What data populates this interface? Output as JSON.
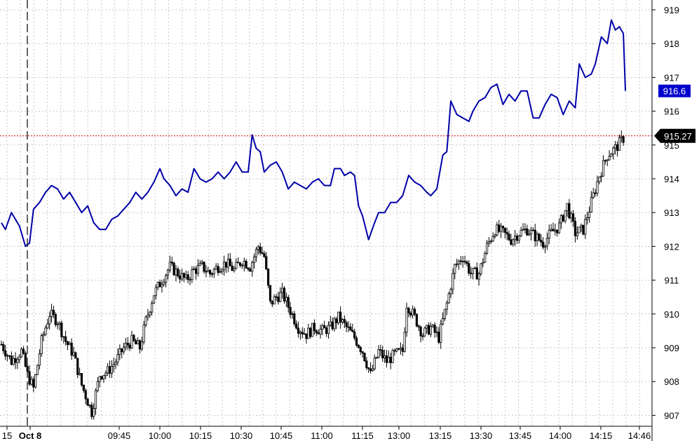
{
  "chart_data": {
    "type": "candlestick+line",
    "y_axis": {
      "range": [
        906.7,
        919.3
      ],
      "ticks": [
        "919",
        "918",
        "917",
        "916",
        "915",
        "914",
        "913",
        "912",
        "911",
        "910",
        "909",
        "908",
        "907"
      ],
      "position": "right"
    },
    "x_axis": {
      "ticks": [
        "15",
        "Oct 8",
        "09:45",
        "10:00",
        "10:15",
        "10:30",
        "10:45",
        "11:00",
        "11:15",
        "13:00",
        "13:15",
        "13:30",
        "13:45",
        "14:00",
        "14:15",
        "14:46"
      ]
    },
    "grid": true,
    "session_break": "Oct 8",
    "last_price_reference": {
      "value": 915.27,
      "label": "915.27",
      "color": "#cc0000"
    },
    "line_series": {
      "color": "#0000aa",
      "last_value_label": "916.6",
      "points": [
        [
          0,
          912.7
        ],
        [
          2,
          912.5
        ],
        [
          5,
          913.0
        ],
        [
          9,
          912.6
        ],
        [
          12,
          912.0
        ],
        [
          14,
          912.1
        ],
        [
          16,
          913.1
        ],
        [
          19,
          913.3
        ],
        [
          22,
          913.6
        ],
        [
          25,
          913.8
        ],
        [
          28,
          913.7
        ],
        [
          31,
          913.4
        ],
        [
          34,
          913.6
        ],
        [
          37,
          913.3
        ],
        [
          40,
          913.0
        ],
        [
          43,
          913.2
        ],
        [
          46,
          912.7
        ],
        [
          49,
          912.5
        ],
        [
          52,
          912.5
        ],
        [
          55,
          912.8
        ],
        [
          58,
          912.9
        ],
        [
          61,
          913.1
        ],
        [
          64,
          913.3
        ],
        [
          67,
          913.6
        ],
        [
          70,
          913.4
        ],
        [
          73,
          913.6
        ],
        [
          76,
          913.9
        ],
        [
          79,
          914.3
        ],
        [
          81,
          914.0
        ],
        [
          84,
          913.8
        ],
        [
          87,
          913.5
        ],
        [
          90,
          913.7
        ],
        [
          93,
          913.6
        ],
        [
          96,
          914.3
        ],
        [
          99,
          914.0
        ],
        [
          102,
          913.9
        ],
        [
          105,
          914.0
        ],
        [
          108,
          914.2
        ],
        [
          111,
          914.0
        ],
        [
          114,
          914.2
        ],
        [
          117,
          914.5
        ],
        [
          120,
          914.2
        ],
        [
          123,
          914.2
        ],
        [
          125,
          915.3
        ],
        [
          127,
          914.9
        ],
        [
          129,
          914.8
        ],
        [
          131,
          914.2
        ],
        [
          134,
          914.4
        ],
        [
          137,
          914.5
        ],
        [
          140,
          914.2
        ],
        [
          143,
          913.7
        ],
        [
          146,
          913.9
        ],
        [
          149,
          913.8
        ],
        [
          152,
          913.7
        ],
        [
          155,
          913.9
        ],
        [
          158,
          914.0
        ],
        [
          161,
          913.8
        ],
        [
          164,
          913.8
        ],
        [
          166,
          914.3
        ],
        [
          169,
          914.3
        ],
        [
          171,
          914.1
        ],
        [
          174,
          914.2
        ],
        [
          176,
          914.1
        ],
        [
          178,
          913.2
        ],
        [
          180,
          912.9
        ],
        [
          183,
          912.2
        ],
        [
          186,
          912.7
        ],
        [
          188,
          913.0
        ],
        [
          191,
          913.0
        ],
        [
          194,
          913.3
        ],
        [
          197,
          913.3
        ],
        [
          200,
          913.5
        ],
        [
          203,
          914.1
        ],
        [
          206,
          913.9
        ],
        [
          209,
          913.8
        ],
        [
          212,
          913.6
        ],
        [
          214,
          913.5
        ],
        [
          217,
          913.7
        ],
        [
          220,
          914.7
        ],
        [
          222,
          914.8
        ],
        [
          224,
          916.3
        ],
        [
          227,
          915.9
        ],
        [
          230,
          915.8
        ],
        [
          233,
          915.7
        ],
        [
          235,
          916.0
        ],
        [
          238,
          916.3
        ],
        [
          241,
          916.4
        ],
        [
          244,
          916.7
        ],
        [
          247,
          916.8
        ],
        [
          250,
          916.2
        ],
        [
          253,
          916.5
        ],
        [
          256,
          916.3
        ],
        [
          259,
          916.6
        ],
        [
          262,
          916.6
        ],
        [
          265,
          915.8
        ],
        [
          268,
          915.8
        ],
        [
          271,
          916.2
        ],
        [
          274,
          916.5
        ],
        [
          277,
          916.4
        ],
        [
          280,
          915.9
        ],
        [
          283,
          916.3
        ],
        [
          286,
          916.1
        ],
        [
          288,
          917.4
        ],
        [
          291,
          917.0
        ],
        [
          294,
          917.1
        ],
        [
          296,
          917.4
        ],
        [
          299,
          918.2
        ],
        [
          302,
          918.0
        ],
        [
          304,
          918.7
        ],
        [
          306,
          918.4
        ],
        [
          308,
          918.5
        ],
        [
          310,
          918.3
        ],
        [
          311,
          916.6
        ]
      ]
    },
    "candle_series": {
      "up_color": "#ffffff",
      "down_color": "#000000",
      "anchors": [
        [
          0,
          909.1
        ],
        [
          5,
          908.6
        ],
        [
          10,
          908.9
        ],
        [
          13,
          908.2
        ],
        [
          16,
          907.8
        ],
        [
          20,
          909.2
        ],
        [
          24,
          910.0
        ],
        [
          28,
          909.8
        ],
        [
          32,
          909.2
        ],
        [
          36,
          908.8
        ],
        [
          40,
          907.9
        ],
        [
          45,
          907.1
        ],
        [
          49,
          908.2
        ],
        [
          53,
          908.3
        ],
        [
          57,
          908.6
        ],
        [
          61,
          909.0
        ],
        [
          65,
          909.2
        ],
        [
          69,
          909.0
        ],
        [
          72,
          909.8
        ],
        [
          76,
          910.6
        ],
        [
          80,
          911.0
        ],
        [
          84,
          911.4
        ],
        [
          88,
          911.2
        ],
        [
          92,
          911.0
        ],
        [
          96,
          911.3
        ],
        [
          100,
          911.4
        ],
        [
          104,
          911.2
        ],
        [
          108,
          911.4
        ],
        [
          112,
          911.5
        ],
        [
          116,
          911.3
        ],
        [
          120,
          911.6
        ],
        [
          124,
          911.4
        ],
        [
          128,
          912.0
        ],
        [
          131,
          911.7
        ],
        [
          134,
          910.3
        ],
        [
          137,
          910.5
        ],
        [
          140,
          910.6
        ],
        [
          144,
          910.1
        ],
        [
          148,
          909.6
        ],
        [
          152,
          909.4
        ],
        [
          156,
          909.6
        ],
        [
          160,
          909.5
        ],
        [
          164,
          909.6
        ],
        [
          168,
          909.9
        ],
        [
          172,
          909.6
        ],
        [
          176,
          909.3
        ],
        [
          180,
          908.9
        ],
        [
          184,
          908.2
        ],
        [
          188,
          908.9
        ],
        [
          192,
          908.6
        ],
        [
          196,
          908.8
        ],
        [
          200,
          908.9
        ],
        [
          202,
          910.3
        ],
        [
          206,
          909.9
        ],
        [
          210,
          909.4
        ],
        [
          214,
          909.6
        ],
        [
          218,
          909.3
        ],
        [
          222,
          910.3
        ],
        [
          226,
          911.4
        ],
        [
          230,
          911.7
        ],
        [
          234,
          911.2
        ],
        [
          238,
          911.2
        ],
        [
          242,
          912.0
        ],
        [
          246,
          912.5
        ],
        [
          250,
          912.4
        ],
        [
          254,
          912.2
        ],
        [
          258,
          912.4
        ],
        [
          262,
          912.5
        ],
        [
          266,
          912.3
        ],
        [
          270,
          912.1
        ],
        [
          274,
          912.4
        ],
        [
          278,
          912.6
        ],
        [
          282,
          913.2
        ],
        [
          286,
          912.4
        ],
        [
          290,
          912.5
        ],
        [
          294,
          913.3
        ],
        [
          298,
          914.1
        ],
        [
          302,
          914.7
        ],
        [
          306,
          914.9
        ],
        [
          310,
          915.2
        ]
      ]
    }
  }
}
